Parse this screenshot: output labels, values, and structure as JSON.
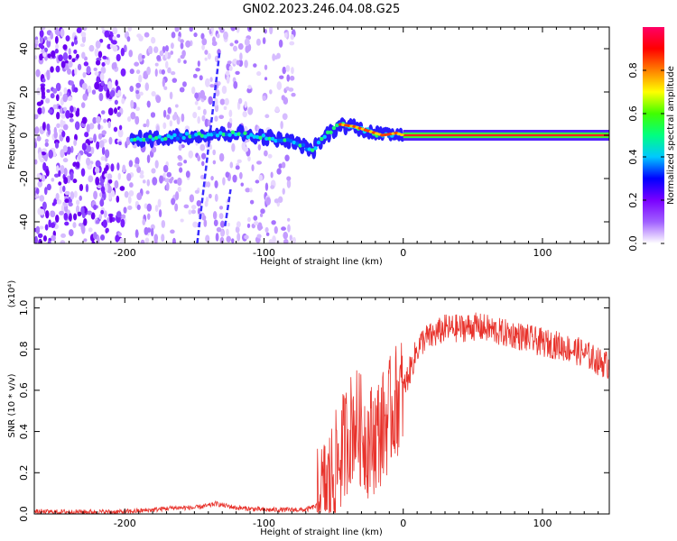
{
  "title": "GN02.2023.246.04.08.G25",
  "chart_data": [
    {
      "type": "heatmap",
      "name": "spectrogram",
      "xlabel": "Height of straight line (km)",
      "ylabel": "Frequency (Hz)",
      "xlim": [
        -265,
        148
      ],
      "ylim": [
        -50,
        50
      ],
      "xticks": [
        -200,
        -100,
        0,
        100
      ],
      "yticks": [
        -40,
        -20,
        0,
        20,
        40
      ],
      "grid": false,
      "colorbar": {
        "label": "Normalized spectral amplitude",
        "range": [
          0,
          1
        ],
        "ticks": [
          "0.0",
          "0.2",
          "0.4",
          "0.6",
          "0.8"
        ],
        "colors": [
          "#ffffff",
          "#a060ff",
          "#7a00ff",
          "#0000ff",
          "#00c8ff",
          "#00ff80",
          "#40ff00",
          "#ffff00",
          "#ff8000",
          "#ff0000",
          "#ff0066"
        ]
      },
      "features": {
        "noise_region_x": [
          -265,
          -78
        ],
        "noise_dense_x": [
          -265,
          -200
        ],
        "dominant_frequency_ridge": [
          {
            "x": -195,
            "y": -2
          },
          {
            "x": -170,
            "y": -1
          },
          {
            "x": -150,
            "y": 0
          },
          {
            "x": -120,
            "y": 1
          },
          {
            "x": -100,
            "y": -1
          },
          {
            "x": -80,
            "y": -3
          },
          {
            "x": -65,
            "y": -7
          },
          {
            "x": -55,
            "y": 0
          },
          {
            "x": -45,
            "y": 5
          },
          {
            "x": -35,
            "y": 4
          },
          {
            "x": -25,
            "y": 2
          },
          {
            "x": -15,
            "y": 0
          },
          {
            "x": -5,
            "y": 1
          },
          {
            "x": 0,
            "y": 0
          },
          {
            "x": 148,
            "y": 0
          }
        ],
        "diagonal_streaks": [
          {
            "x0": -148,
            "y0": -50,
            "x1": -132,
            "y1": 38
          },
          {
            "x0": -128,
            "y0": -42,
            "x1": -124,
            "y1": -25
          }
        ]
      }
    },
    {
      "type": "line",
      "name": "snr",
      "xlabel": "Height of straight line (km)",
      "ylabel": "SNR (10 * v/v)",
      "y_multiplier": "(x10⁴)",
      "xlim": [
        -265,
        148
      ],
      "ylim": [
        0,
        1.05
      ],
      "xticks": [
        -200,
        -100,
        0,
        100
      ],
      "yticks": [
        "0.0",
        "0.2",
        "0.4",
        "0.6",
        "0.8",
        "1.0"
      ],
      "grid": false,
      "line_color": "#e8332c",
      "series": [
        {
          "x": [
            -265,
            -240,
            -220,
            -200,
            -180,
            -165,
            -150,
            -140,
            -135,
            -120,
            -100,
            -90,
            -80,
            -70,
            -62,
            -55,
            -50,
            -45,
            -40,
            -35,
            -30,
            -25,
            -20,
            -15,
            -10,
            -5,
            0,
            5,
            10,
            15,
            20,
            25,
            30,
            40,
            50,
            60,
            70,
            80,
            90,
            100,
            110,
            120,
            130,
            140,
            148
          ],
          "values": [
            0.01,
            0.01,
            0.01,
            0.01,
            0.02,
            0.03,
            0.03,
            0.04,
            0.05,
            0.03,
            0.02,
            0.02,
            0.02,
            0.02,
            0.04,
            0.12,
            0.2,
            0.28,
            0.38,
            0.45,
            0.4,
            0.35,
            0.38,
            0.42,
            0.48,
            0.55,
            0.6,
            0.7,
            0.8,
            0.85,
            0.86,
            0.88,
            0.9,
            0.9,
            0.91,
            0.9,
            0.88,
            0.87,
            0.85,
            0.83,
            0.82,
            0.8,
            0.78,
            0.74,
            0.72
          ]
        }
      ]
    }
  ]
}
